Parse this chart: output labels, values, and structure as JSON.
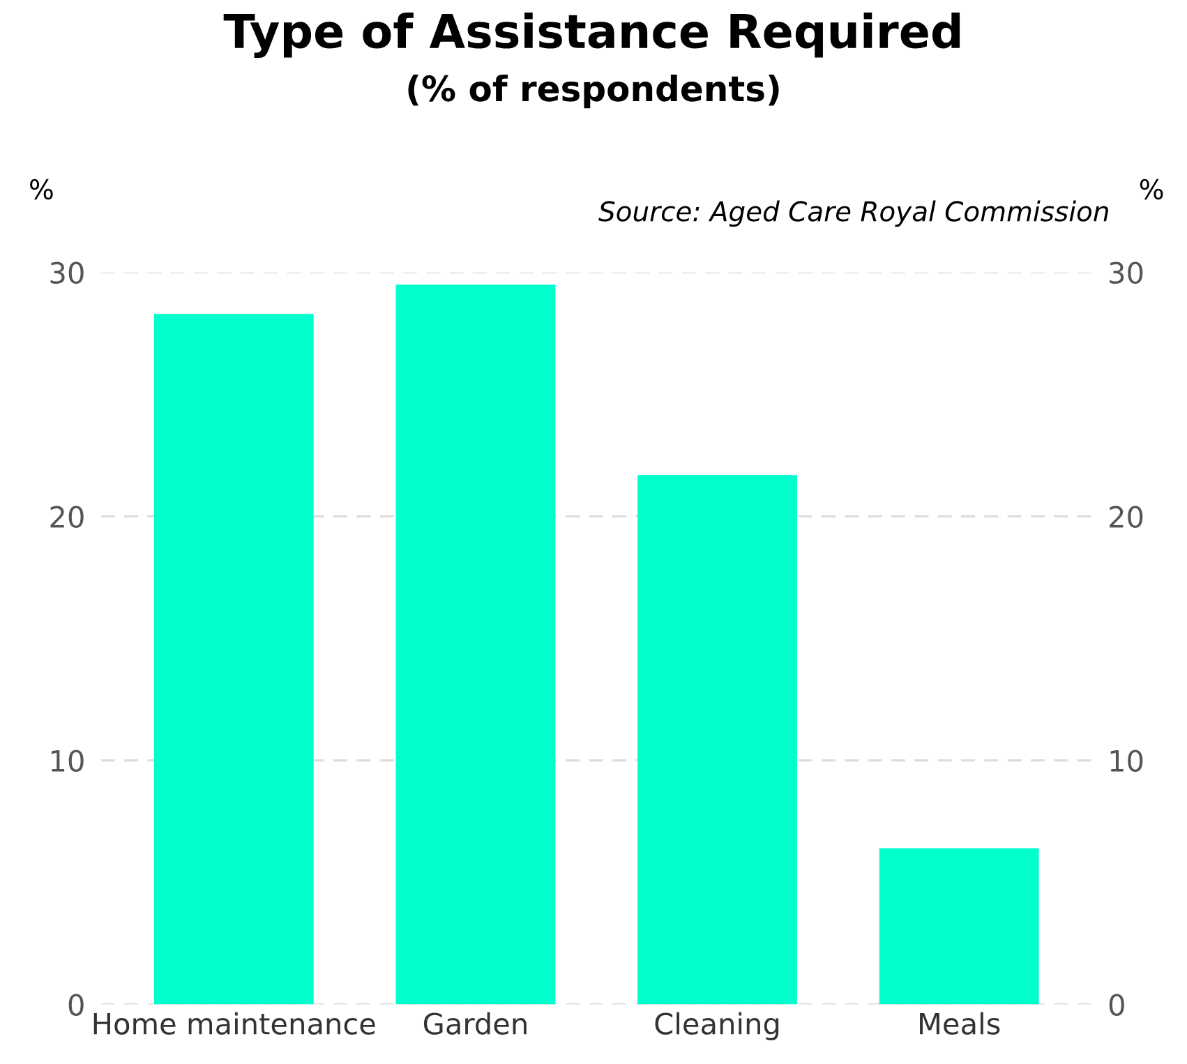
{
  "chart_data": {
    "type": "bar",
    "title": "Type of Assistance Required",
    "subtitle": "(% of respondents)",
    "ylabel": "%",
    "y2label": "%",
    "annotations": [
      "Source: Aged Care Royal Commission"
    ],
    "categories": [
      "Home maintenance",
      "Garden",
      "Cleaning",
      "Meals"
    ],
    "values": [
      28.3,
      29.5,
      21.7,
      6.4
    ],
    "color": "#00ffcc",
    "ylim": [
      0,
      30
    ],
    "yticks": [
      0,
      10,
      20,
      30
    ],
    "y2lim": [
      0,
      30
    ],
    "y2ticks": [
      0,
      10,
      20,
      30
    ],
    "grid": "y",
    "legend": false
  }
}
